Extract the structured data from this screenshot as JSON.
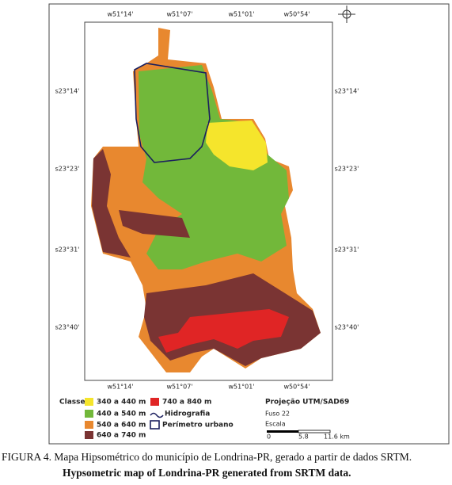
{
  "coordinates": {
    "top": [
      "w51°14'",
      "w51°07'",
      "w51°01'",
      "w50°54'"
    ],
    "bottom": [
      "w51°14'",
      "w51°07'",
      "w51°01'",
      "w50°54'"
    ],
    "left": [
      "s23°14'",
      "s23°23'",
      "s23°31'",
      "s23°40'"
    ],
    "right": [
      "s23°14'",
      "s23°23'",
      "s23°31'",
      "s23°40'"
    ]
  },
  "legend": {
    "title": "Classes:",
    "items": [
      {
        "label": "340 a 440 m",
        "color": "#f5e52c"
      },
      {
        "label": "440 a 540 m",
        "color": "#72b83a"
      },
      {
        "label": "540 a 640 m",
        "color": "#e8882f"
      },
      {
        "label": "640 a 740 m",
        "color": "#7a3433"
      },
      {
        "label": "740 a 840 m",
        "color": "#e02525"
      }
    ],
    "hydrography": "Hidrografia",
    "urban_perimeter": "Perímetro urbano"
  },
  "projection": {
    "title": "Projeção UTM/SAD69",
    "zone": "Fuso 22",
    "scale_label": "Escala",
    "scale_ticks": [
      "0",
      "5.8",
      "11.6 km"
    ]
  },
  "caption": {
    "pt": "FIGURA 4. Mapa Hipsométrico do município de Londrina-PR, gerado a partir de dados SRTM.",
    "en": "Hypsometric map of Londrina-PR generated from SRTM data."
  }
}
